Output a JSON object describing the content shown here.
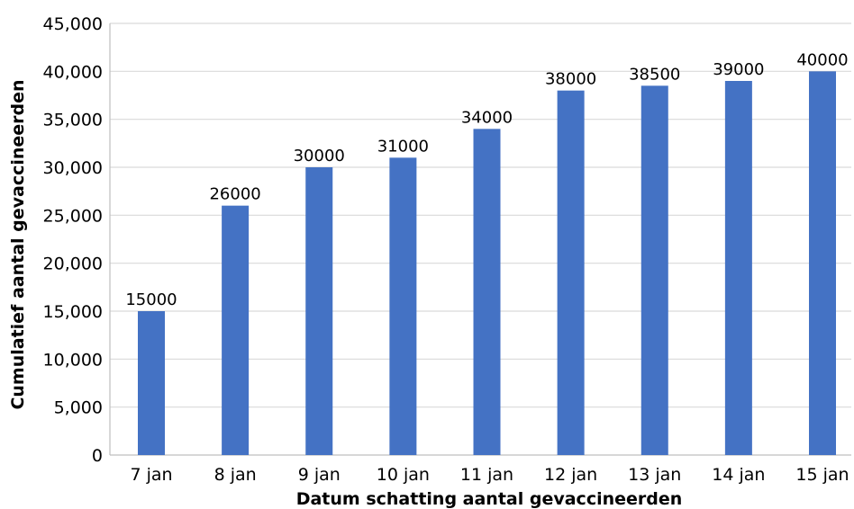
{
  "chart_data": {
    "type": "bar",
    "categories": [
      "7 jan",
      "8 jan",
      "9 jan",
      "10 jan",
      "11 jan",
      "12 jan",
      "13 jan",
      "14 jan",
      "15 jan"
    ],
    "values": [
      15000,
      26000,
      30000,
      31000,
      34000,
      38000,
      38500,
      39000,
      40000
    ],
    "data_labels": [
      "15000",
      "26000",
      "30000",
      "31000",
      "34000",
      "38000",
      "38500",
      "39000",
      "40000"
    ],
    "y_ticks": [
      0,
      5000,
      10000,
      15000,
      20000,
      25000,
      30000,
      35000,
      40000,
      45000
    ],
    "y_tick_labels": [
      "0",
      "5,000",
      "10,000",
      "15,000",
      "20,000",
      "25,000",
      "30,000",
      "35,000",
      "40,000",
      "45,000"
    ],
    "ylim": [
      0,
      45000
    ],
    "xlabel": "Datum schatting aantal gevaccineerden",
    "ylabel": "Cumulatief aantal gevaccineerden",
    "grid": true,
    "legend": "none",
    "colors": {
      "bar": "#4472C4",
      "grid": "#D9D9D9",
      "axis": "#BFBFBF"
    }
  }
}
